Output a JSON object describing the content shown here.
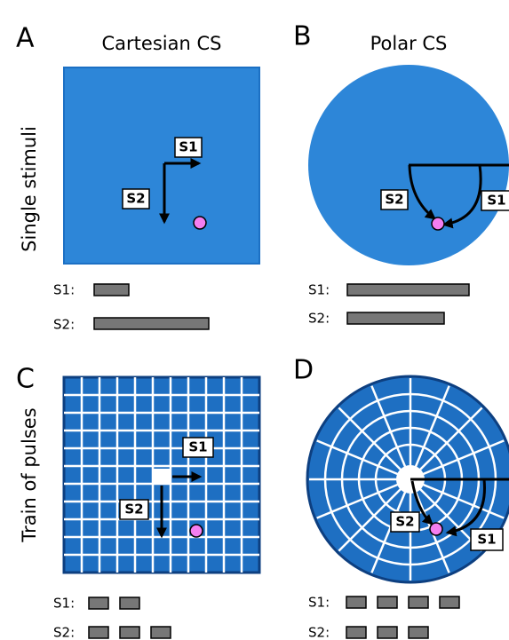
{
  "panels": [
    {
      "letter": "A",
      "title": "Cartesian CS",
      "labels": [
        "S1",
        "S2"
      ],
      "legend": [
        "S1:",
        "S2:"
      ]
    },
    {
      "letter": "B",
      "title": "Polar CS",
      "labels": [
        "S1",
        "S2"
      ],
      "legend": [
        "S1:",
        "S2:"
      ]
    },
    {
      "letter": "C",
      "labels": [
        "S1",
        "S2"
      ],
      "legend": [
        "S1:",
        "S2:"
      ]
    },
    {
      "letter": "D",
      "labels": [
        "S1",
        "S2"
      ],
      "legend": [
        "S1:",
        "S2:"
      ]
    }
  ],
  "rows": [
    "Single stimuli",
    "Train of pulses"
  ]
}
